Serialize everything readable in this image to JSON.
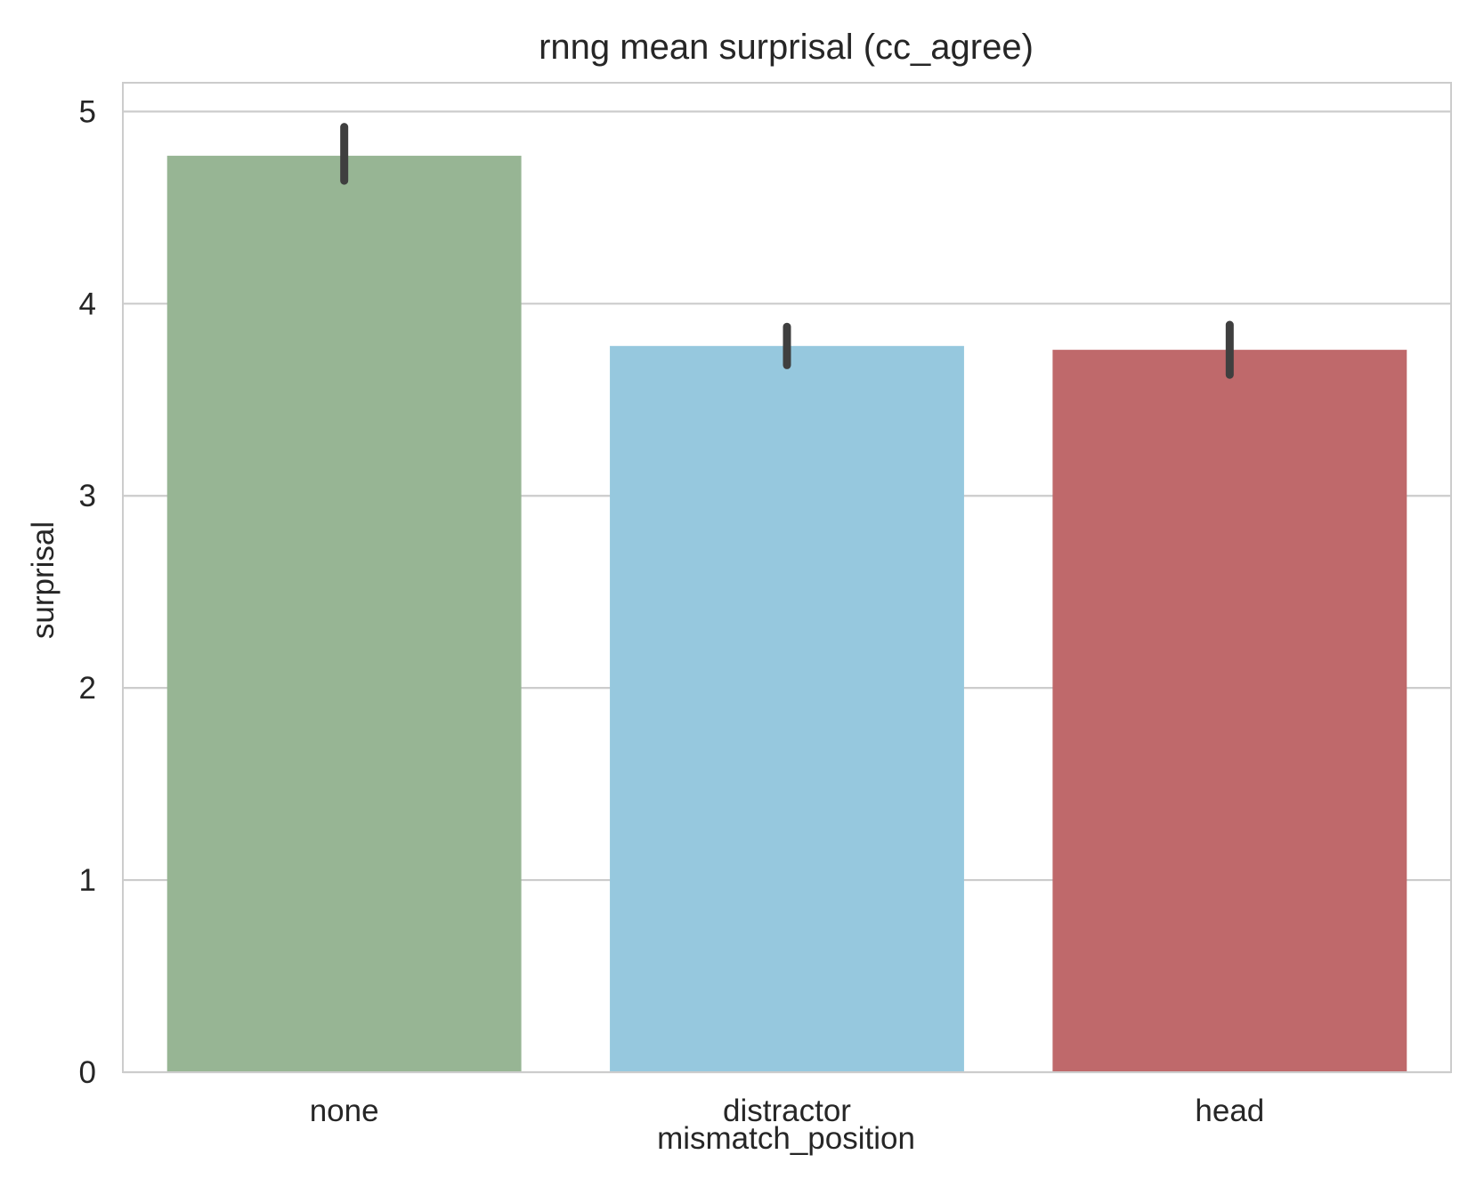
{
  "chart_data": {
    "type": "bar",
    "title": "rnng mean surprisal (cc_agree)",
    "xlabel": "mismatch_position",
    "ylabel": "surprisal",
    "categories": [
      "none",
      "distractor",
      "head"
    ],
    "values": [
      4.77,
      3.78,
      3.76
    ],
    "error_bars": [
      {
        "low": 4.64,
        "high": 4.92
      },
      {
        "low": 3.68,
        "high": 3.88
      },
      {
        "low": 3.63,
        "high": 3.89
      }
    ],
    "colors": [
      "#97b594",
      "#96c8de",
      "#bf696b"
    ],
    "ylim": [
      0,
      5.15
    ],
    "yticks": [
      0,
      1,
      2,
      3,
      4,
      5
    ],
    "grid": "horizontal",
    "style": {
      "grid_color": "#cccccc",
      "spine_color": "#cccccc",
      "errorbar_color": "#3f3f3f",
      "text_color": "#262626"
    }
  }
}
